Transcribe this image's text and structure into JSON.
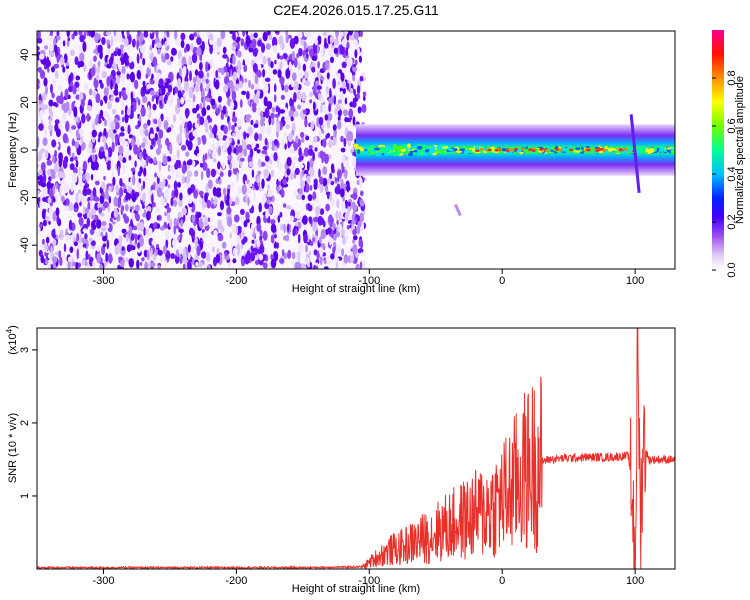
{
  "title": "C2E4.2026.015.17.25.G11",
  "colors": {
    "snr_line": "#e8302a",
    "axis": "#000000",
    "spec_background_low": "#ffffff",
    "colormap": [
      "#ffffff",
      "#d4b8f2",
      "#8a3ff0",
      "#5a00ff",
      "#0000ff",
      "#00c8ff",
      "#00ff80",
      "#80ff00",
      "#ffff00",
      "#ff8000",
      "#ff0000",
      "#ff0080"
    ]
  },
  "chart_data": [
    {
      "type": "heatmap",
      "name": "spectrogram",
      "xlabel": "Height of straight line (km)",
      "ylabel": "Frequency (Hz)",
      "xlim": [
        -350,
        130
      ],
      "ylim": [
        -50,
        50
      ],
      "xticks": [
        -300,
        -200,
        -100,
        0,
        100
      ],
      "xtick_labels": [
        "-300",
        "-200",
        "-100",
        "0",
        "100"
      ],
      "yticks": [
        -40,
        -20,
        0,
        20,
        40
      ],
      "ytick_labels": [
        "-40",
        "-20",
        "0",
        "20",
        "40"
      ],
      "noise_region_x": [
        -350,
        -108
      ],
      "signal_band": {
        "x_start": -110,
        "x_end": 130,
        "center_hz": 0,
        "width_hz": 6
      },
      "features": [
        {
          "x": -33,
          "y": -25,
          "note": "short diagonal streak"
        },
        {
          "x": 97,
          "y_from": 15,
          "y_to": -18,
          "note": "vertical transient near 100 km"
        }
      ],
      "colorbar": {
        "label": "Normalized spectral amplitude",
        "range": [
          0.0,
          1.0
        ],
        "ticks": [
          0.0,
          0.2,
          0.4,
          0.6,
          0.8
        ],
        "tick_labels": [
          "0.0",
          "0.2",
          "0.4",
          "0.6",
          "0.8"
        ]
      }
    },
    {
      "type": "line",
      "name": "snr",
      "xlabel": "Height of straight line (km)",
      "ylabel": "SNR (10 * v/v)",
      "y_multiplier_label": "(x10",
      "y_multiplier_exponent": "4",
      "y_multiplier_close": ")",
      "xlim": [
        -350,
        130
      ],
      "ylim": [
        0,
        3.3
      ],
      "xticks": [
        -300,
        -200,
        -100,
        0,
        100
      ],
      "xtick_labels": [
        "-300",
        "-200",
        "-100",
        "0",
        "100"
      ],
      "yticks": [
        1,
        2,
        3
      ],
      "ytick_labels": [
        "1",
        "2",
        "3"
      ],
      "series": [
        {
          "name": "SNR",
          "x": [
            -350,
            -250,
            -150,
            -105,
            -95,
            -85,
            -75,
            -65,
            -55,
            -45,
            -35,
            -25,
            -15,
            -5,
            5,
            15,
            25,
            35,
            50,
            65,
            80,
            95,
            98,
            100,
            102,
            104,
            106,
            110,
            120,
            130
          ],
          "y": [
            0.02,
            0.02,
            0.02,
            0.03,
            0.15,
            0.25,
            0.3,
            0.38,
            0.45,
            0.55,
            0.62,
            0.7,
            0.78,
            0.88,
            1.05,
            1.3,
            1.45,
            1.5,
            1.52,
            1.53,
            1.53,
            1.55,
            1.0,
            0.1,
            3.2,
            0.5,
            1.8,
            1.5,
            1.5,
            1.5
          ]
        }
      ]
    }
  ]
}
